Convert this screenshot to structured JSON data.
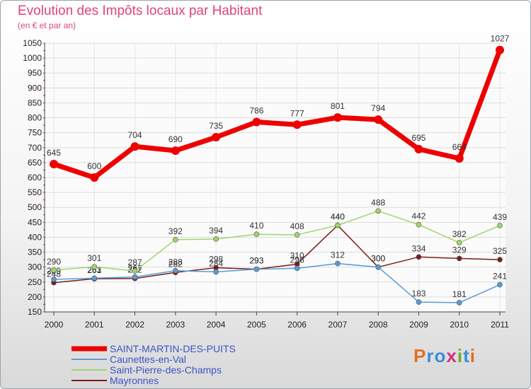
{
  "chart_data": {
    "type": "line",
    "title": "Evolution des Impôts locaux par Habitant",
    "subtitle": "(en € et par an)",
    "categories": [
      "2000",
      "2001",
      "2002",
      "2003",
      "2004",
      "2005",
      "2006",
      "2007",
      "2008",
      "2009",
      "2010",
      "2011"
    ],
    "ylim": [
      150,
      1050
    ],
    "yticks": [
      150,
      200,
      250,
      300,
      350,
      400,
      450,
      500,
      550,
      600,
      650,
      700,
      750,
      800,
      850,
      900,
      950,
      1000,
      1050
    ],
    "series": [
      {
        "name": "Mayronnes",
        "color": "#7a1d1d",
        "values": [
          248,
          261,
          262,
          282,
          298,
          293,
          310,
          440,
          300,
          334,
          329,
          325
        ]
      },
      {
        "name": "Caunettes-en-Val",
        "color": "#5b9bd5",
        "values": [
          259,
          263,
          267,
          288,
          284,
          293,
          296,
          312,
          300,
          183,
          181,
          241
        ]
      },
      {
        "name": "Saint-Pierre-des-Champs",
        "color": "#9ed56b",
        "values": [
          290,
          301,
          287,
          392,
          394,
          410,
          408,
          440,
          488,
          442,
          382,
          439
        ]
      },
      {
        "name": "SAINT-MARTIN-DES-PUITS",
        "color": "#ee0000",
        "values": [
          645,
          600,
          704,
          690,
          735,
          786,
          777,
          801,
          794,
          695,
          664,
          1027
        ]
      }
    ],
    "legend": [
      {
        "name": "SAINT-MARTIN-DES-PUITS",
        "color": "#ee0000"
      },
      {
        "name": "Caunettes-en-Val",
        "color": "#5b9bd5"
      },
      {
        "name": "Saint-Pierre-des-Champs",
        "color": "#9ed56b"
      },
      {
        "name": "Mayronnes",
        "color": "#7a1d1d"
      }
    ]
  },
  "brand": {
    "logo_text": "Proxiti"
  }
}
